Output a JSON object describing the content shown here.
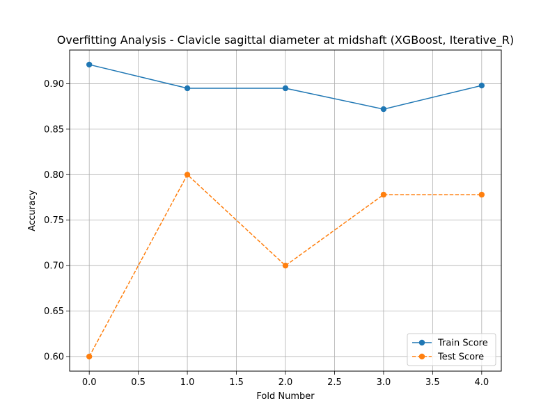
{
  "chart_data": {
    "type": "line",
    "title": "Overfitting Analysis - Clavicle sagittal diameter at midshaft (XGBoost, Iterative_R)",
    "xlabel": "Fold Number",
    "ylabel": "Accuracy",
    "x": [
      0,
      1,
      2,
      3,
      4
    ],
    "xlim": [
      -0.2,
      4.2
    ],
    "ylim": [
      0.584,
      0.937
    ],
    "xticks": [
      0.0,
      0.5,
      1.0,
      1.5,
      2.0,
      2.5,
      3.0,
      3.5,
      4.0
    ],
    "xtick_labels": [
      "0.0",
      "0.5",
      "1.0",
      "1.5",
      "2.0",
      "2.5",
      "3.0",
      "3.5",
      "4.0"
    ],
    "yticks": [
      0.6,
      0.65,
      0.7,
      0.75,
      0.8,
      0.85,
      0.9
    ],
    "ytick_labels": [
      "0.60",
      "0.65",
      "0.70",
      "0.75",
      "0.80",
      "0.85",
      "0.90"
    ],
    "grid": true,
    "legend_position": "lower-right",
    "series": [
      {
        "name": "Train Score",
        "values": [
          0.921,
          0.895,
          0.895,
          0.872,
          0.898
        ],
        "color": "#1f77b4",
        "dash": "solid",
        "marker": "circle"
      },
      {
        "name": "Test Score",
        "values": [
          0.6,
          0.8,
          0.7,
          0.778,
          0.778
        ],
        "color": "#ff7f0e",
        "dash": "dashed",
        "marker": "circle"
      }
    ]
  }
}
